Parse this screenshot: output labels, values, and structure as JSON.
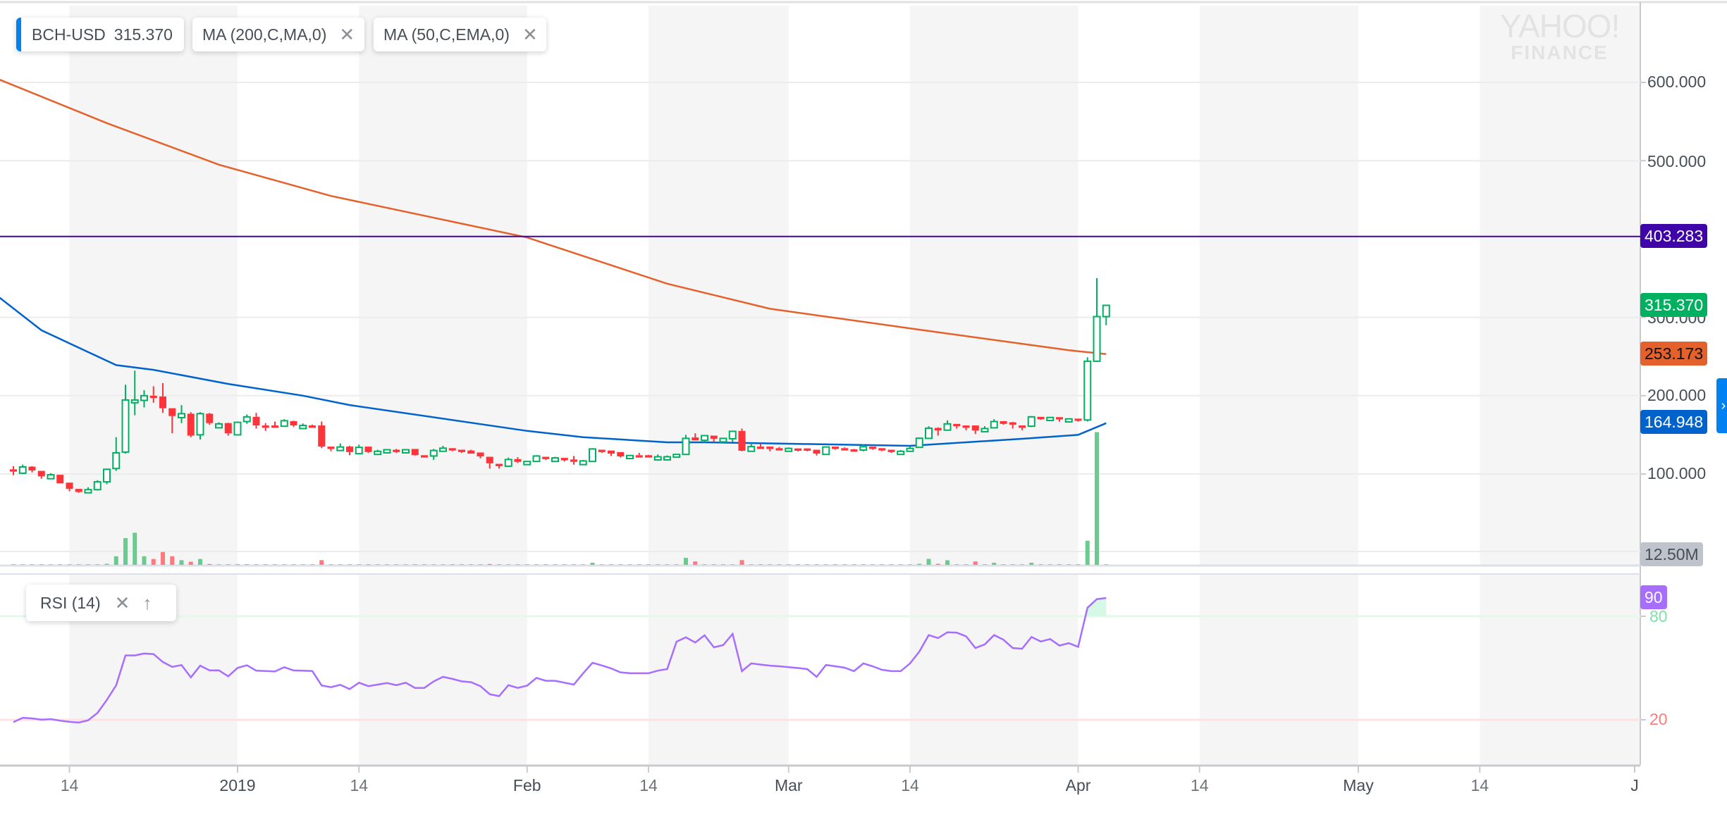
{
  "legend": {
    "symbol": "BCH-USD",
    "price": "315.370",
    "ma200_label": "MA (200,C,MA,0)",
    "ma50_label": "MA (50,C,EMA,0)",
    "rsi_label": "RSI (14)",
    "close_icon": "close-icon",
    "move_up_icon": "arrow-up-icon"
  },
  "watermark": {
    "line1": "YAHOO!",
    "line2": "FINANCE"
  },
  "price_tags": {
    "horizontal_line": "403.283",
    "last_price": "315.370",
    "ma200": "253.173",
    "ma50": "164.948",
    "volume": "12.50M",
    "rsi": "90"
  },
  "colors": {
    "up": "#00b061",
    "down": "#ff333a",
    "ma200": "#e5612b",
    "ma50": "#0062cc",
    "hline": "#3f05a8",
    "rsi": "#a66dff",
    "accent": "#0081f2",
    "volume_tag": "#bfc3cc"
  },
  "chart_data": {
    "type": "candlestick",
    "symbol": "BCH-USD",
    "price_axis": {
      "ticks": [
        "100.000",
        "200.000",
        "300.000",
        "500.000",
        "600.000"
      ],
      "tick_values": [
        100,
        200,
        300,
        500,
        600
      ],
      "ylim": [
        0,
        700
      ]
    },
    "volume_axis": {
      "gridline_value_m": 12.5,
      "label": "12.50M"
    },
    "x_ticks": [
      {
        "label": "14",
        "date": "2018-12-14"
      },
      {
        "label": "2019",
        "date": "2019-01-01",
        "major": true
      },
      {
        "label": "14",
        "date": "2019-01-14"
      },
      {
        "label": "Feb",
        "date": "2019-02-01",
        "major": true
      },
      {
        "label": "14",
        "date": "2019-02-14"
      },
      {
        "label": "Mar",
        "date": "2019-03-01",
        "major": true
      },
      {
        "label": "14",
        "date": "2019-03-14"
      },
      {
        "label": "Apr",
        "date": "2019-04-01",
        "major": true
      },
      {
        "label": "14",
        "date": "2019-04-14"
      },
      {
        "label": "May",
        "date": "2019-05-01",
        "major": true
      },
      {
        "label": "14",
        "date": "2019-05-14"
      },
      {
        "label": "J",
        "date": "2019-06-01",
        "major": true
      }
    ],
    "horizontal_line": 403.283,
    "candles_columns": [
      "date",
      "open",
      "high",
      "low",
      "close",
      "volume_m"
    ],
    "candles": [
      [
        "2018-12-08",
        106,
        110,
        98.5,
        103,
        0.5
      ],
      [
        "2018-12-09",
        101,
        112,
        100,
        109,
        0.5
      ],
      [
        "2018-12-10",
        109.4,
        110,
        102,
        104.5,
        0.5
      ],
      [
        "2018-12-11",
        104,
        104,
        94,
        97,
        0.5
      ],
      [
        "2018-12-12",
        94,
        101,
        94,
        99,
        0.5
      ],
      [
        "2018-12-13",
        99,
        99,
        88,
        88,
        0.5
      ],
      [
        "2018-12-14",
        89,
        89,
        78,
        81,
        0.5
      ],
      [
        "2018-12-15",
        81,
        81,
        76,
        77,
        0.5
      ],
      [
        "2018-12-16",
        76,
        83,
        76,
        80,
        0.5
      ],
      [
        "2018-12-17",
        80,
        92,
        79,
        90,
        0.5
      ],
      [
        "2018-12-18",
        90,
        107,
        87,
        106,
        1
      ],
      [
        "2018-12-19",
        107,
        147,
        104,
        127,
        8
      ],
      [
        "2018-12-20",
        128,
        214,
        126,
        194.5,
        25
      ],
      [
        "2018-12-21",
        191,
        232,
        175,
        194.5,
        30
      ],
      [
        "2018-12-22",
        194,
        207,
        185,
        200,
        8
      ],
      [
        "2018-12-23",
        200,
        212,
        191,
        197,
        5.5
      ],
      [
        "2018-12-24",
        199,
        216,
        178,
        184,
        12
      ],
      [
        "2018-12-25",
        184,
        184,
        152,
        174,
        8
      ],
      [
        "2018-12-26",
        172,
        188,
        165,
        177,
        4.4
      ],
      [
        "2018-12-27",
        177,
        179,
        147,
        149,
        2.9
      ],
      [
        "2018-12-28",
        150,
        179,
        144,
        177,
        5.5
      ],
      [
        "2018-12-29",
        177,
        178,
        163,
        165,
        0.8
      ],
      [
        "2018-12-30",
        159,
        166,
        159,
        164,
        0.5
      ],
      [
        "2018-12-31",
        165,
        165.5,
        149,
        152,
        0.5
      ],
      [
        "2019-01-01",
        150,
        167,
        150,
        166,
        0.6
      ],
      [
        "2019-01-02",
        167,
        176,
        164,
        173,
        0.6
      ],
      [
        "2019-01-03",
        173,
        178,
        158,
        162,
        0.5
      ],
      [
        "2019-01-04",
        162,
        165,
        155,
        159,
        0.5
      ],
      [
        "2019-01-05",
        162,
        167,
        159,
        159,
        0.5
      ],
      [
        "2019-01-06",
        161,
        170,
        161,
        168,
        0.5
      ],
      [
        "2019-01-07",
        167.5,
        168,
        160,
        162,
        0.5
      ],
      [
        "2019-01-08",
        158,
        164.5,
        158,
        162,
        0.5
      ],
      [
        "2019-01-09",
        162,
        163,
        159,
        159,
        0.5
      ],
      [
        "2019-01-10",
        162,
        167,
        133,
        135,
        4.4
      ],
      [
        "2019-01-11",
        135,
        135,
        129,
        132,
        0.5
      ],
      [
        "2019-01-12",
        130,
        139,
        130,
        134.5,
        0.5
      ],
      [
        "2019-01-13",
        135,
        136,
        124,
        128,
        0.5
      ],
      [
        "2019-01-14",
        126,
        137.5,
        125,
        134,
        0.5
      ],
      [
        "2019-01-15",
        135,
        135,
        127,
        128,
        0.5
      ],
      [
        "2019-01-16",
        125,
        131,
        125,
        129,
        0.5
      ],
      [
        "2019-01-17",
        127,
        131,
        127,
        131,
        0.5
      ],
      [
        "2019-01-18",
        131,
        132,
        127,
        128,
        0.5
      ],
      [
        "2019-01-19",
        127,
        132,
        127,
        131,
        0.5
      ],
      [
        "2019-01-20",
        132,
        132,
        123.5,
        124,
        0.5
      ],
      [
        "2019-01-21",
        124,
        124,
        121,
        121,
        0.5
      ],
      [
        "2019-01-22",
        123,
        132,
        118,
        130,
        0.5
      ],
      [
        "2019-01-23",
        129,
        136,
        129,
        133,
        0.5
      ],
      [
        "2019-01-24",
        133,
        133,
        129,
        130,
        0.5
      ],
      [
        "2019-01-25",
        131,
        131,
        127,
        128,
        0.5
      ],
      [
        "2019-01-26",
        130,
        131,
        126,
        126,
        0.5
      ],
      [
        "2019-01-27",
        127.5,
        127.5,
        120,
        122.5,
        0.5
      ],
      [
        "2019-01-28",
        122,
        122,
        107,
        113.6,
        0.8
      ],
      [
        "2019-01-29",
        113,
        113,
        107,
        110,
        0.5
      ],
      [
        "2019-01-30",
        110,
        121,
        109,
        118.5,
        0.5
      ],
      [
        "2019-01-31",
        119,
        121.5,
        114,
        115.5,
        0.5
      ],
      [
        "2019-02-01",
        112,
        116,
        112,
        116,
        0.5
      ],
      [
        "2019-02-02",
        116,
        124,
        116,
        123,
        0.5
      ],
      [
        "2019-02-03",
        122,
        122,
        118,
        119,
        0.5
      ],
      [
        "2019-02-04",
        116,
        122,
        116,
        120.6,
        0.5
      ],
      [
        "2019-02-05",
        120.6,
        120.6,
        116,
        117.5,
        0.5
      ],
      [
        "2019-02-06",
        118.5,
        123,
        112,
        115.5,
        0.5
      ],
      [
        "2019-02-07",
        112,
        118,
        112,
        116.7,
        0.5
      ],
      [
        "2019-02-08",
        116,
        133,
        115.5,
        132,
        2
      ],
      [
        "2019-02-09",
        131,
        131,
        127,
        128,
        0.5
      ],
      [
        "2019-02-10",
        130,
        130,
        123,
        126,
        0.5
      ],
      [
        "2019-02-11",
        128,
        128,
        121,
        122.5,
        0.5
      ],
      [
        "2019-02-12",
        119.7,
        123.6,
        119.7,
        123.6,
        0.5
      ],
      [
        "2019-02-13",
        124,
        127,
        121,
        121,
        0.5
      ],
      [
        "2019-02-14",
        124,
        124.5,
        121,
        121,
        0.5
      ],
      [
        "2019-02-15",
        118,
        125,
        118,
        122,
        0.5
      ],
      [
        "2019-02-16",
        118,
        123.6,
        118,
        122,
        0.5
      ],
      [
        "2019-02-17",
        121.5,
        125.5,
        121.5,
        125,
        0.5
      ],
      [
        "2019-02-18",
        125,
        150,
        125,
        145.5,
        6.5
      ],
      [
        "2019-02-19",
        146.7,
        152,
        143,
        143,
        3.2
      ],
      [
        "2019-02-20",
        143,
        149,
        140.6,
        149,
        0.5
      ],
      [
        "2019-02-21",
        149,
        149,
        141.5,
        145,
        0.5
      ],
      [
        "2019-02-22",
        141,
        145.5,
        141,
        145.5,
        0.5
      ],
      [
        "2019-02-23",
        145,
        154.5,
        141,
        154.5,
        0.5
      ],
      [
        "2019-02-24",
        155,
        158,
        129,
        129.7,
        4.5
      ],
      [
        "2019-02-25",
        129,
        139.4,
        129,
        135,
        0.5
      ],
      [
        "2019-02-26",
        135,
        139,
        132,
        132,
        0.5
      ],
      [
        "2019-02-27",
        135,
        135,
        129,
        132,
        0.5
      ],
      [
        "2019-02-28",
        133,
        134.5,
        130,
        130,
        0.5
      ],
      [
        "2019-03-01",
        129,
        134,
        129,
        132.7,
        0.5
      ],
      [
        "2019-03-02",
        132.7,
        132.7,
        129,
        129.7,
        0.5
      ],
      [
        "2019-03-03",
        132.7,
        132.7,
        129,
        129.7,
        0.5
      ],
      [
        "2019-03-04",
        131,
        131,
        123.6,
        126,
        0.5
      ],
      [
        "2019-03-05",
        125,
        134.5,
        125,
        134.5,
        0.5
      ],
      [
        "2019-03-06",
        135,
        135,
        131,
        132,
        0.5
      ],
      [
        "2019-03-07",
        133,
        134,
        130,
        130,
        0.5
      ],
      [
        "2019-03-08",
        131.5,
        132,
        128.5,
        128.5,
        0.5
      ],
      [
        "2019-03-09",
        130.6,
        138,
        129,
        134.8,
        0.5
      ],
      [
        "2019-03-10",
        135,
        135,
        131,
        132,
        0.5
      ],
      [
        "2019-03-11",
        133,
        133,
        129,
        130,
        0.5
      ],
      [
        "2019-03-12",
        131,
        131,
        127,
        128,
        0.5
      ],
      [
        "2019-03-13",
        125,
        130.6,
        125,
        129,
        0.5
      ],
      [
        "2019-03-14",
        129,
        135,
        129,
        132.7,
        0.5
      ],
      [
        "2019-03-15",
        134,
        146.6,
        134,
        145.7,
        1
      ],
      [
        "2019-03-16",
        145.5,
        161,
        145.5,
        158.5,
        5.6
      ],
      [
        "2019-03-17",
        158.8,
        159.7,
        149,
        155.7,
        1
      ],
      [
        "2019-03-18",
        156,
        168.5,
        156,
        164,
        4.3
      ],
      [
        "2019-03-19",
        164,
        164,
        158,
        161,
        0.5
      ],
      [
        "2019-03-20",
        162,
        162,
        156,
        159,
        0.5
      ],
      [
        "2019-03-21",
        162,
        162,
        151,
        155.5,
        3.2
      ],
      [
        "2019-03-22",
        154,
        161,
        154,
        158,
        0.5
      ],
      [
        "2019-03-23",
        159,
        170,
        158,
        167,
        2
      ],
      [
        "2019-03-24",
        167.5,
        167.5,
        163,
        164,
        0.5
      ],
      [
        "2019-03-25",
        166,
        166.6,
        158,
        163,
        0.5
      ],
      [
        "2019-03-26",
        162,
        162,
        156,
        159,
        0.5
      ],
      [
        "2019-03-27",
        161,
        174,
        160,
        173,
        2
      ],
      [
        "2019-03-28",
        173,
        173,
        169,
        170,
        0.5
      ],
      [
        "2019-03-29",
        168.3,
        172.5,
        168.3,
        172.2,
        0.5
      ],
      [
        "2019-03-30",
        172.6,
        172.6,
        166.8,
        169.6,
        0.5
      ],
      [
        "2019-03-31",
        166.5,
        170.4,
        166.5,
        170.4,
        0.5
      ],
      [
        "2019-04-01",
        170.7,
        170.7,
        166.8,
        167.9,
        0.5
      ],
      [
        "2019-04-02",
        169,
        249,
        167,
        244,
        22.6
      ],
      [
        "2019-04-03",
        244,
        350,
        243,
        301,
        124
      ],
      [
        "2019-04-04",
        301,
        316,
        290,
        315.37,
        0.5
      ]
    ],
    "ma200": [
      [
        "2018-12-06",
        606
      ],
      [
        "2018-12-18",
        548
      ],
      [
        "2018-12-30",
        495
      ],
      [
        "2019-01-11",
        455
      ],
      [
        "2019-02-01",
        402
      ],
      [
        "2019-02-16",
        343
      ],
      [
        "2019-02-27",
        311
      ],
      [
        "2019-03-14",
        286
      ],
      [
        "2019-03-31",
        258
      ],
      [
        "2019-04-04",
        253.173
      ]
    ],
    "ma50": [
      [
        "2018-12-06",
        330
      ],
      [
        "2018-12-11",
        283.5
      ],
      [
        "2018-12-19",
        239
      ],
      [
        "2018-12-23",
        233
      ],
      [
        "2018-12-31",
        215
      ],
      [
        "2019-01-08",
        200
      ],
      [
        "2019-01-13",
        188
      ],
      [
        "2019-02-01",
        155
      ],
      [
        "2019-02-07",
        147
      ],
      [
        "2019-02-16",
        140.5
      ],
      [
        "2019-02-20",
        140.5
      ],
      [
        "2019-03-01",
        138.7
      ],
      [
        "2019-03-14",
        136
      ],
      [
        "2019-03-26",
        145
      ],
      [
        "2019-04-01",
        150
      ],
      [
        "2019-04-04",
        164.948
      ]
    ],
    "rsi": {
      "period": 14,
      "levels": [
        {
          "value": 80,
          "label": "80"
        },
        {
          "value": 20,
          "label": "20"
        }
      ],
      "values": [
        18.7,
        21.2,
        20.8,
        20.1,
        20.4,
        19.5,
        18.8,
        18.4,
        19.7,
        24,
        31.5,
        40,
        57.3,
        57.3,
        58.4,
        58.1,
        53.5,
        50.7,
        51.7,
        44.6,
        51.4,
        48.6,
        48.7,
        45.2,
        50.1,
        51.6,
        48.5,
        48.3,
        48,
        50.5,
        48.6,
        48.5,
        48.3,
        39.9,
        38.9,
        40.3,
        37.8,
        41.5,
        39.5,
        40.4,
        41.3,
        40.1,
        41.5,
        38.5,
        38.5,
        42.3,
        44.9,
        43.7,
        42.3,
        41.8,
        39.5,
        34.8,
        33.7,
        40.1,
        38.5,
        39.8,
        44.3,
        42.6,
        42.6,
        41.5,
        40.4,
        47,
        53,
        51.5,
        49.8,
        47.5,
        47,
        47,
        47,
        48.5,
        49.4,
        65.3,
        67.8,
        64.8,
        69,
        62,
        63.3,
        69.8,
        48.2,
        52.7,
        52,
        51.4,
        51,
        50.5,
        50,
        49.4,
        44.9,
        51.8,
        51,
        50.2,
        48.2,
        52.7,
        51,
        49,
        48.2,
        48.2,
        52.7,
        59.6,
        69.1,
        67.4,
        70.7,
        70.5,
        68.4,
        61.6,
        63.7,
        69.1,
        66.4,
        61.6,
        61.2,
        68,
        65.4,
        66.8,
        63,
        64.4,
        62.3,
        85,
        89.9,
        90.6
      ]
    }
  }
}
